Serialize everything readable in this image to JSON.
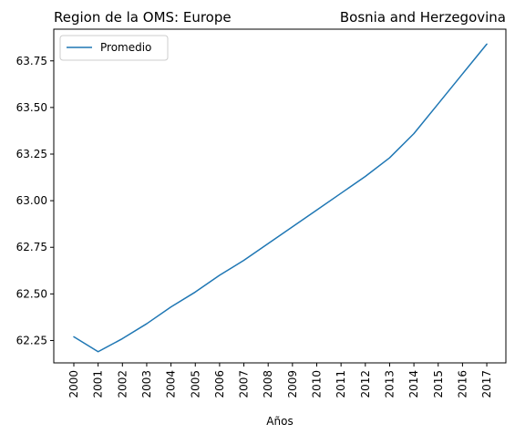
{
  "chart_data": {
    "type": "line",
    "title_left": "Region de la OMS: Europe",
    "title_right": "Bosnia and Herzegovina",
    "xlabel": "Años",
    "ylabel": "",
    "x": [
      "2000",
      "2001",
      "2002",
      "2003",
      "2004",
      "2005",
      "2006",
      "2007",
      "2008",
      "2009",
      "2010",
      "2011",
      "2012",
      "2013",
      "2014",
      "2015",
      "2016",
      "2017"
    ],
    "series": [
      {
        "name": "Promedio",
        "color": "#1f77b4",
        "values": [
          62.27,
          62.19,
          62.26,
          62.34,
          62.43,
          62.51,
          62.6,
          62.68,
          62.77,
          62.86,
          62.95,
          63.04,
          63.13,
          63.23,
          63.36,
          63.52,
          63.68,
          63.84
        ]
      }
    ],
    "yticks": [
      62.25,
      62.5,
      62.75,
      63.0,
      63.25,
      63.5,
      63.75
    ],
    "ytick_labels": [
      "62.25",
      "62.50",
      "62.75",
      "63.00",
      "63.25",
      "63.50",
      "63.75"
    ],
    "ylim": [
      62.13,
      63.92
    ],
    "grid": false,
    "legend_position": "upper-left"
  }
}
